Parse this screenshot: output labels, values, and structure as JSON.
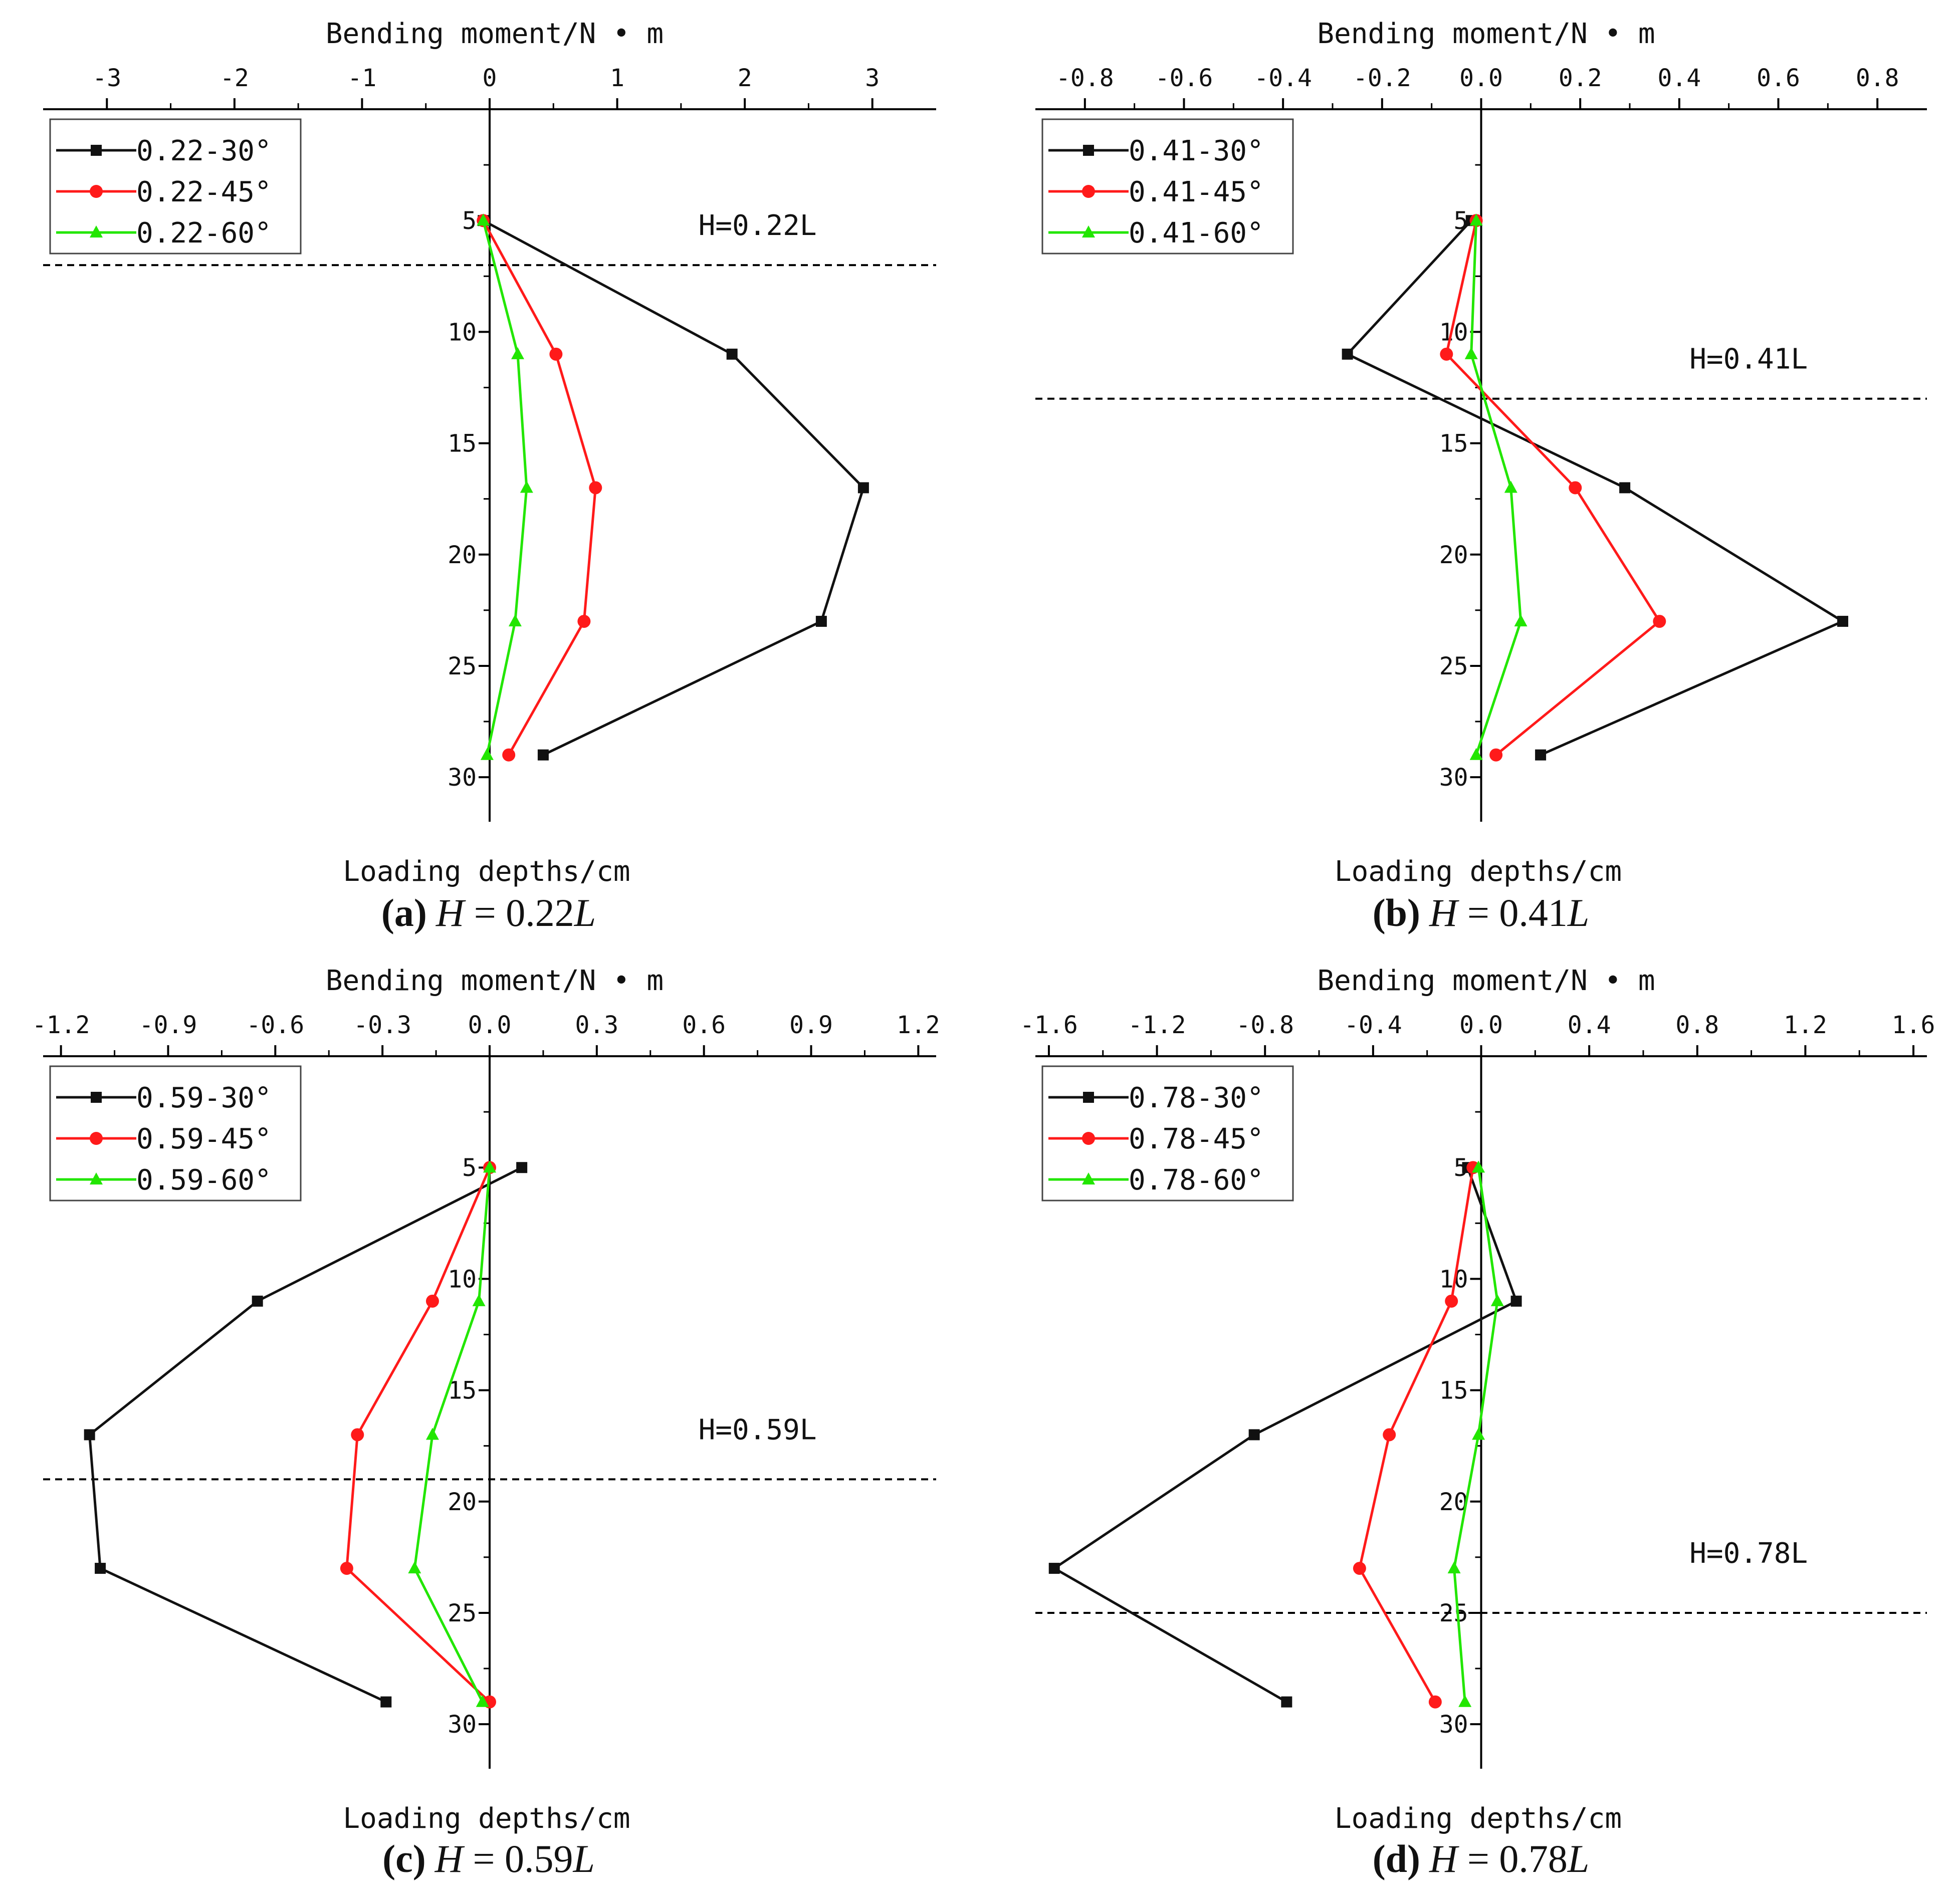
{
  "colors": {
    "black": "#111111",
    "red": "#ff1a1a",
    "green": "#22e600",
    "axis": "#000000"
  },
  "chart_data": [
    {
      "type": "line",
      "panel": "a",
      "title": "Bending moment/N • m",
      "xlabel": "Bending moment/N • m",
      "ylabel": "Loading depths/cm",
      "caption_label": "(a)",
      "caption_var": "H",
      "caption_eq": " = 0.22",
      "caption_unit": "L",
      "annotation": "H=0.22L",
      "boundary_depth": 7,
      "xlim": [
        -3.5,
        3.5
      ],
      "xticks": [
        -3,
        -2,
        -1,
        0,
        1,
        2,
        3
      ],
      "xtick_labels": [
        "-3",
        "-2",
        "-1",
        "0",
        "1",
        "2",
        "3"
      ],
      "ylim": [
        0,
        32
      ],
      "yticks": [
        5,
        10,
        15,
        20,
        25,
        30
      ],
      "ytick_labels": [
        "5",
        "10",
        "15",
        "20",
        "25",
        "30"
      ],
      "legend_position": "top-left",
      "series": [
        {
          "name": "0.22-30°",
          "color": "#111111",
          "marker": "square",
          "depth": [
            5,
            11,
            17,
            23,
            29
          ],
          "values": [
            -0.05,
            1.9,
            2.93,
            2.6,
            0.42
          ]
        },
        {
          "name": "0.22-45°",
          "color": "#ff1a1a",
          "marker": "circle",
          "depth": [
            5,
            11,
            17,
            23,
            29
          ],
          "values": [
            -0.05,
            0.52,
            0.83,
            0.74,
            0.15
          ]
        },
        {
          "name": "0.22-60°",
          "color": "#22e600",
          "marker": "triangle",
          "depth": [
            5,
            11,
            17,
            23,
            29
          ],
          "values": [
            -0.05,
            0.22,
            0.29,
            0.2,
            -0.02
          ]
        }
      ]
    },
    {
      "type": "line",
      "panel": "b",
      "title": "Bending moment/N • m",
      "xlabel": "Bending moment/N • m",
      "ylabel": "Loading depths/cm",
      "caption_label": "(b)",
      "caption_var": "H",
      "caption_eq": " = 0.41",
      "caption_unit": "L",
      "annotation": "H=0.41L",
      "boundary_depth": 13,
      "xlim": [
        -0.9,
        0.9
      ],
      "xticks": [
        -0.8,
        -0.6,
        -0.4,
        -0.2,
        0.0,
        0.2,
        0.4,
        0.6,
        0.8
      ],
      "xtick_labels": [
        "-0.8",
        "-0.6",
        "-0.4",
        "-0.2",
        "0.0",
        "0.2",
        "0.4",
        "0.6",
        "0.8"
      ],
      "ylim": [
        0,
        32
      ],
      "yticks": [
        5,
        10,
        15,
        20,
        25,
        30
      ],
      "ytick_labels": [
        "5",
        "10",
        "15",
        "20",
        "25",
        "30"
      ],
      "legend_position": "top-left",
      "series": [
        {
          "name": "0.41-30°",
          "color": "#111111",
          "marker": "square",
          "depth": [
            5,
            11,
            17,
            23,
            29
          ],
          "values": [
            -0.02,
            -0.27,
            0.29,
            0.73,
            0.12
          ]
        },
        {
          "name": "0.41-45°",
          "color": "#ff1a1a",
          "marker": "circle",
          "depth": [
            5,
            11,
            17,
            23,
            29
          ],
          "values": [
            -0.01,
            -0.07,
            0.19,
            0.36,
            0.03
          ]
        },
        {
          "name": "0.41-60°",
          "color": "#22e600",
          "marker": "triangle",
          "depth": [
            5,
            11,
            17,
            23,
            29
          ],
          "values": [
            -0.01,
            -0.02,
            0.06,
            0.08,
            -0.01
          ]
        }
      ]
    },
    {
      "type": "line",
      "panel": "c",
      "title": "Bending moment/N • m",
      "xlabel": "Bending moment/N • m",
      "ylabel": "Loading depths/cm",
      "caption_label": "(c)",
      "caption_var": "H",
      "caption_eq": " = 0.59",
      "caption_unit": "L",
      "annotation": "H=0.59L",
      "boundary_depth": 19,
      "xlim": [
        -1.25,
        1.25
      ],
      "xticks": [
        -1.2,
        -0.9,
        -0.6,
        -0.3,
        0.0,
        0.3,
        0.6,
        0.9,
        1.2
      ],
      "xtick_labels": [
        "-1.2",
        "-0.9",
        "-0.6",
        "-0.3",
        "0.0",
        "0.3",
        "0.6",
        "0.9",
        "1.2"
      ],
      "ylim": [
        0,
        32
      ],
      "yticks": [
        5,
        10,
        15,
        20,
        25,
        30
      ],
      "ytick_labels": [
        "5",
        "10",
        "15",
        "20",
        "25",
        "30"
      ],
      "legend_position": "top-left",
      "series": [
        {
          "name": "0.59-30°",
          "color": "#111111",
          "marker": "square",
          "depth": [
            5,
            11,
            17,
            23,
            29
          ],
          "values": [
            0.09,
            -0.65,
            -1.12,
            -1.09,
            -0.29
          ]
        },
        {
          "name": "0.59-45°",
          "color": "#ff1a1a",
          "marker": "circle",
          "depth": [
            5,
            11,
            17,
            23,
            29
          ],
          "values": [
            0.0,
            -0.16,
            -0.37,
            -0.4,
            0.0
          ]
        },
        {
          "name": "0.59-60°",
          "color": "#22e600",
          "marker": "triangle",
          "depth": [
            5,
            11,
            17,
            23,
            29
          ],
          "values": [
            0.0,
            -0.03,
            -0.16,
            -0.21,
            -0.02
          ]
        }
      ]
    },
    {
      "type": "line",
      "panel": "d",
      "title": "Bending moment/N • m",
      "xlabel": "Bending moment/N • m",
      "ylabel": "Loading depths/cm",
      "caption_label": "(d)",
      "caption_var": "H",
      "caption_eq": " = 0.78",
      "caption_unit": "L",
      "annotation": "H=0.78L",
      "boundary_depth": 25,
      "xlim": [
        -1.65,
        1.65
      ],
      "xticks": [
        -1.6,
        -1.2,
        -0.8,
        -0.4,
        0.0,
        0.4,
        0.8,
        1.2,
        1.6
      ],
      "xtick_labels": [
        "-1.6",
        "-1.2",
        "-0.8",
        "-0.4",
        "0.0",
        "0.4",
        "0.8",
        "1.2",
        "1.6"
      ],
      "ylim": [
        0,
        32
      ],
      "yticks": [
        5,
        10,
        15,
        20,
        25,
        30
      ],
      "ytick_labels": [
        "5",
        "10",
        "15",
        "20",
        "25",
        "30"
      ],
      "legend_position": "top-left",
      "series": [
        {
          "name": "0.78-30°",
          "color": "#111111",
          "marker": "square",
          "depth": [
            5,
            11,
            17,
            23,
            29
          ],
          "values": [
            -0.05,
            0.13,
            -0.84,
            -1.58,
            -0.72
          ]
        },
        {
          "name": "0.78-45°",
          "color": "#ff1a1a",
          "marker": "circle",
          "depth": [
            5,
            11,
            17,
            23,
            29
          ],
          "values": [
            -0.03,
            -0.11,
            -0.34,
            -0.45,
            -0.17
          ]
        },
        {
          "name": "0.78-60°",
          "color": "#22e600",
          "marker": "triangle",
          "depth": [
            5,
            11,
            17,
            23,
            29
          ],
          "values": [
            -0.01,
            0.06,
            -0.01,
            -0.1,
            -0.06
          ]
        }
      ]
    }
  ]
}
